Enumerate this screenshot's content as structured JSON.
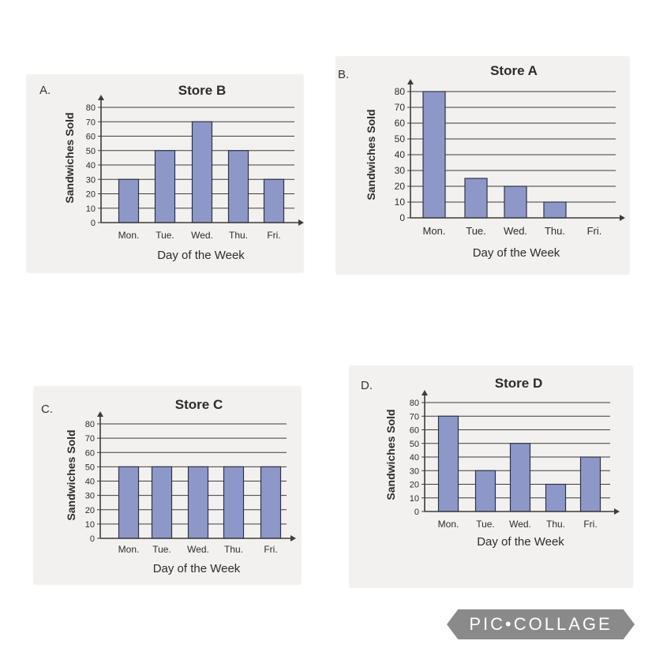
{
  "options": [
    {
      "letter": "A.",
      "chart_index": 0
    },
    {
      "letter": "B.",
      "chart_index": 1
    },
    {
      "letter": "C.",
      "chart_index": 2
    },
    {
      "letter": "D.",
      "chart_index": 3
    }
  ],
  "watermark": "PIC•COLLAGE",
  "colors": {
    "bar_fill": "#8e98c8",
    "bar_stroke": "#2e3346",
    "grid": "#3c3c3c",
    "text": "#2c2c2c"
  },
  "chart_data": [
    {
      "type": "bar",
      "title": "Store B",
      "xlabel": "Day of the Week",
      "ylabel": "Sandwiches Sold",
      "categories": [
        "Mon.",
        "Tue.",
        "Wed.",
        "Thu.",
        "Fri."
      ],
      "values": [
        30,
        50,
        70,
        50,
        30
      ],
      "ylim": [
        0,
        80
      ],
      "yticks": [
        "0",
        "10",
        "20",
        "30",
        "40",
        "50",
        "60",
        "70",
        "80"
      ],
      "grid": true
    },
    {
      "type": "bar",
      "title": "Store A",
      "xlabel": "Day of the Week",
      "ylabel": "Sandwiches Sold",
      "categories": [
        "Mon.",
        "Tue.",
        "Wed.",
        "Thu.",
        "Fri."
      ],
      "values": [
        80,
        25,
        20,
        10,
        0
      ],
      "ylim": [
        0,
        80
      ],
      "yticks": [
        "0",
        "10",
        "20",
        "30",
        "40",
        "50",
        "60",
        "70",
        "80"
      ],
      "grid": true
    },
    {
      "type": "bar",
      "title": "Store C",
      "xlabel": "Day of the Week",
      "ylabel": "Sandwiches Sold",
      "categories": [
        "Mon.",
        "Tue.",
        "Wed.",
        "Thu.",
        "Fri."
      ],
      "values": [
        50,
        50,
        50,
        50,
        50
      ],
      "ylim": [
        0,
        80
      ],
      "yticks": [
        "0",
        "10",
        "20",
        "30",
        "40",
        "50",
        "60",
        "70",
        "80"
      ],
      "grid": true
    },
    {
      "type": "bar",
      "title": "Store D",
      "xlabel": "Day of the Week",
      "ylabel": "Sandwiches Sold",
      "categories": [
        "Mon.",
        "Tue.",
        "Wed.",
        "Thu.",
        "Fri."
      ],
      "values": [
        70,
        30,
        50,
        20,
        40
      ],
      "ylim": [
        0,
        80
      ],
      "yticks": [
        "0",
        "10",
        "20",
        "30",
        "40",
        "50",
        "60",
        "70",
        "80"
      ],
      "grid": true
    }
  ]
}
